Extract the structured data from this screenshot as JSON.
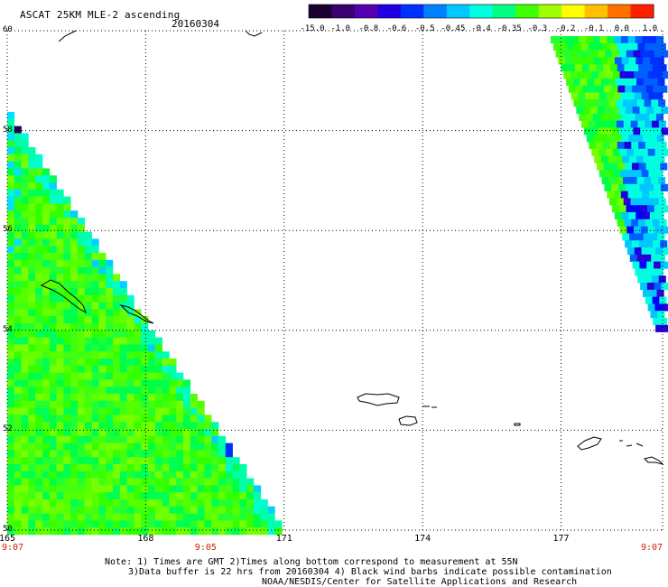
{
  "header": {
    "title": "ASCAT 25KM MLE-2 ascending",
    "date": "20160304"
  },
  "colorbar": {
    "labels": [
      "-15.0",
      "-1.0",
      "-0.8",
      "-0.6",
      "-0.5",
      "-0.45",
      "-0.4",
      "-0.35",
      "-0.3",
      "-0.2",
      "-0.1",
      "0.0",
      "1.0"
    ],
    "colors": [
      "#1a0030",
      "#3a0070",
      "#5500b0",
      "#2000e0",
      "#0030ff",
      "#0080ff",
      "#00c8ff",
      "#00ffe0",
      "#00ff80",
      "#40ff00",
      "#a0ff00",
      "#ffff00",
      "#ffc000",
      "#ff7000",
      "#ff2000"
    ]
  },
  "map": {
    "lat_labels": [
      "60",
      "58",
      "56",
      "54",
      "52",
      "50"
    ],
    "lon_labels": [
      "165",
      "168",
      "171",
      "174",
      "177"
    ],
    "time_labels": [
      "9:07",
      "9:05",
      "9:07"
    ],
    "lat_range": [
      50,
      60
    ],
    "lon_range": [
      165,
      179.2
    ]
  },
  "notes": {
    "line1": "Note: 1) Times are GMT 2)Times along bottom correspond to measurement at 55N",
    "line2": "3)Data buffer is 22 hrs from 20160304 4) Black wind barbs indicate possible contamination",
    "line3": "NOAA/NESDIS/Center for Satellite Applications and Research"
  }
}
